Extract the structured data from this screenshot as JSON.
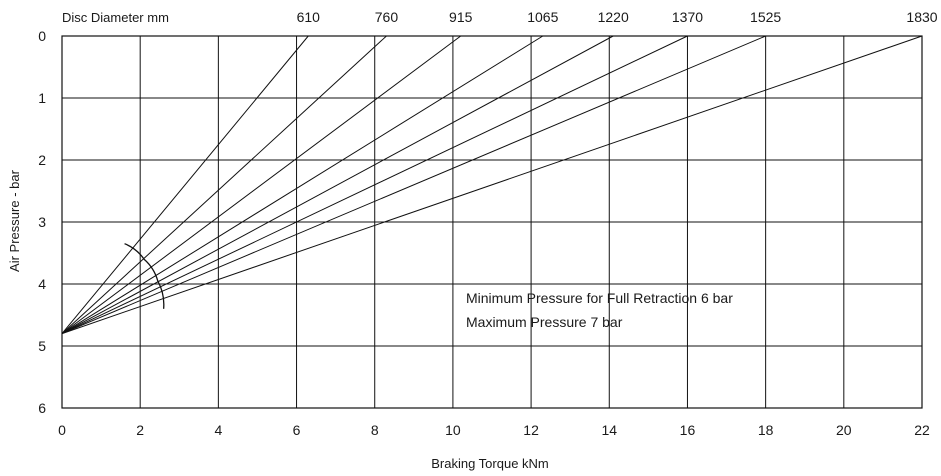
{
  "chart_data": {
    "type": "line",
    "title": "",
    "xlabel": "Braking Torque kNm",
    "ylabel": "Air Pressure - bar",
    "top_axis_label": "Disc Diameter mm",
    "xlim": [
      0,
      22
    ],
    "ylim": [
      0,
      6
    ],
    "y_inverted": true,
    "grid": true,
    "legend": "none",
    "x_ticks": [
      0,
      2,
      4,
      6,
      8,
      10,
      12,
      14,
      16,
      18,
      20,
      22
    ],
    "y_ticks": [
      0,
      1,
      2,
      3,
      4,
      5,
      6
    ],
    "series": [
      {
        "diameter": "610",
        "x": [
          0,
          6.3
        ],
        "y": [
          4.8,
          0
        ]
      },
      {
        "diameter": "760",
        "x": [
          0,
          8.3
        ],
        "y": [
          4.8,
          0
        ]
      },
      {
        "diameter": "915",
        "x": [
          0,
          10.2
        ],
        "y": [
          4.8,
          0
        ]
      },
      {
        "diameter": "1065",
        "x": [
          0,
          12.3
        ],
        "y": [
          4.8,
          0
        ]
      },
      {
        "diameter": "1220",
        "x": [
          0,
          14.1
        ],
        "y": [
          4.8,
          0
        ]
      },
      {
        "diameter": "1370",
        "x": [
          0,
          16.0
        ],
        "y": [
          4.8,
          0
        ]
      },
      {
        "diameter": "1525",
        "x": [
          0,
          18.0
        ],
        "y": [
          4.8,
          0
        ]
      },
      {
        "diameter": "1830",
        "x": [
          0,
          22.0
        ],
        "y": [
          4.8,
          0
        ]
      }
    ],
    "arc_points": [
      {
        "x": 1.6,
        "y": 3.35
      },
      {
        "x": 2.1,
        "y": 3.6
      },
      {
        "x": 2.45,
        "y": 3.95
      },
      {
        "x": 2.6,
        "y": 4.4
      }
    ],
    "annotations": [
      "Minimum Pressure for Full Retraction 6 bar",
      "Maximum Pressure 7 bar"
    ]
  }
}
